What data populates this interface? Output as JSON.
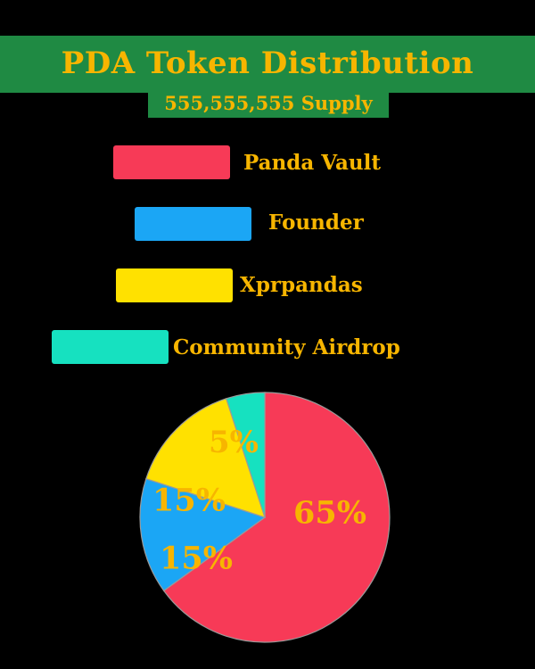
{
  "chart_data": {
    "type": "pie",
    "title": "PDA Token Distribution",
    "subtitle": "555,555,555 Supply",
    "slices": [
      {
        "label": "Panda Vault",
        "value": 65,
        "data_label": "65%",
        "color": "#f73a57"
      },
      {
        "label": "Founder",
        "value": 15,
        "data_label": "15%",
        "color": "#1ba6f5"
      },
      {
        "label": "Xprpandas",
        "value": 15,
        "data_label": "15%",
        "color": "#ffe100"
      },
      {
        "label": "Community Airdrop",
        "value": 5,
        "data_label": "5%",
        "color": "#16e1c0"
      }
    ],
    "legend_placement": "top"
  }
}
